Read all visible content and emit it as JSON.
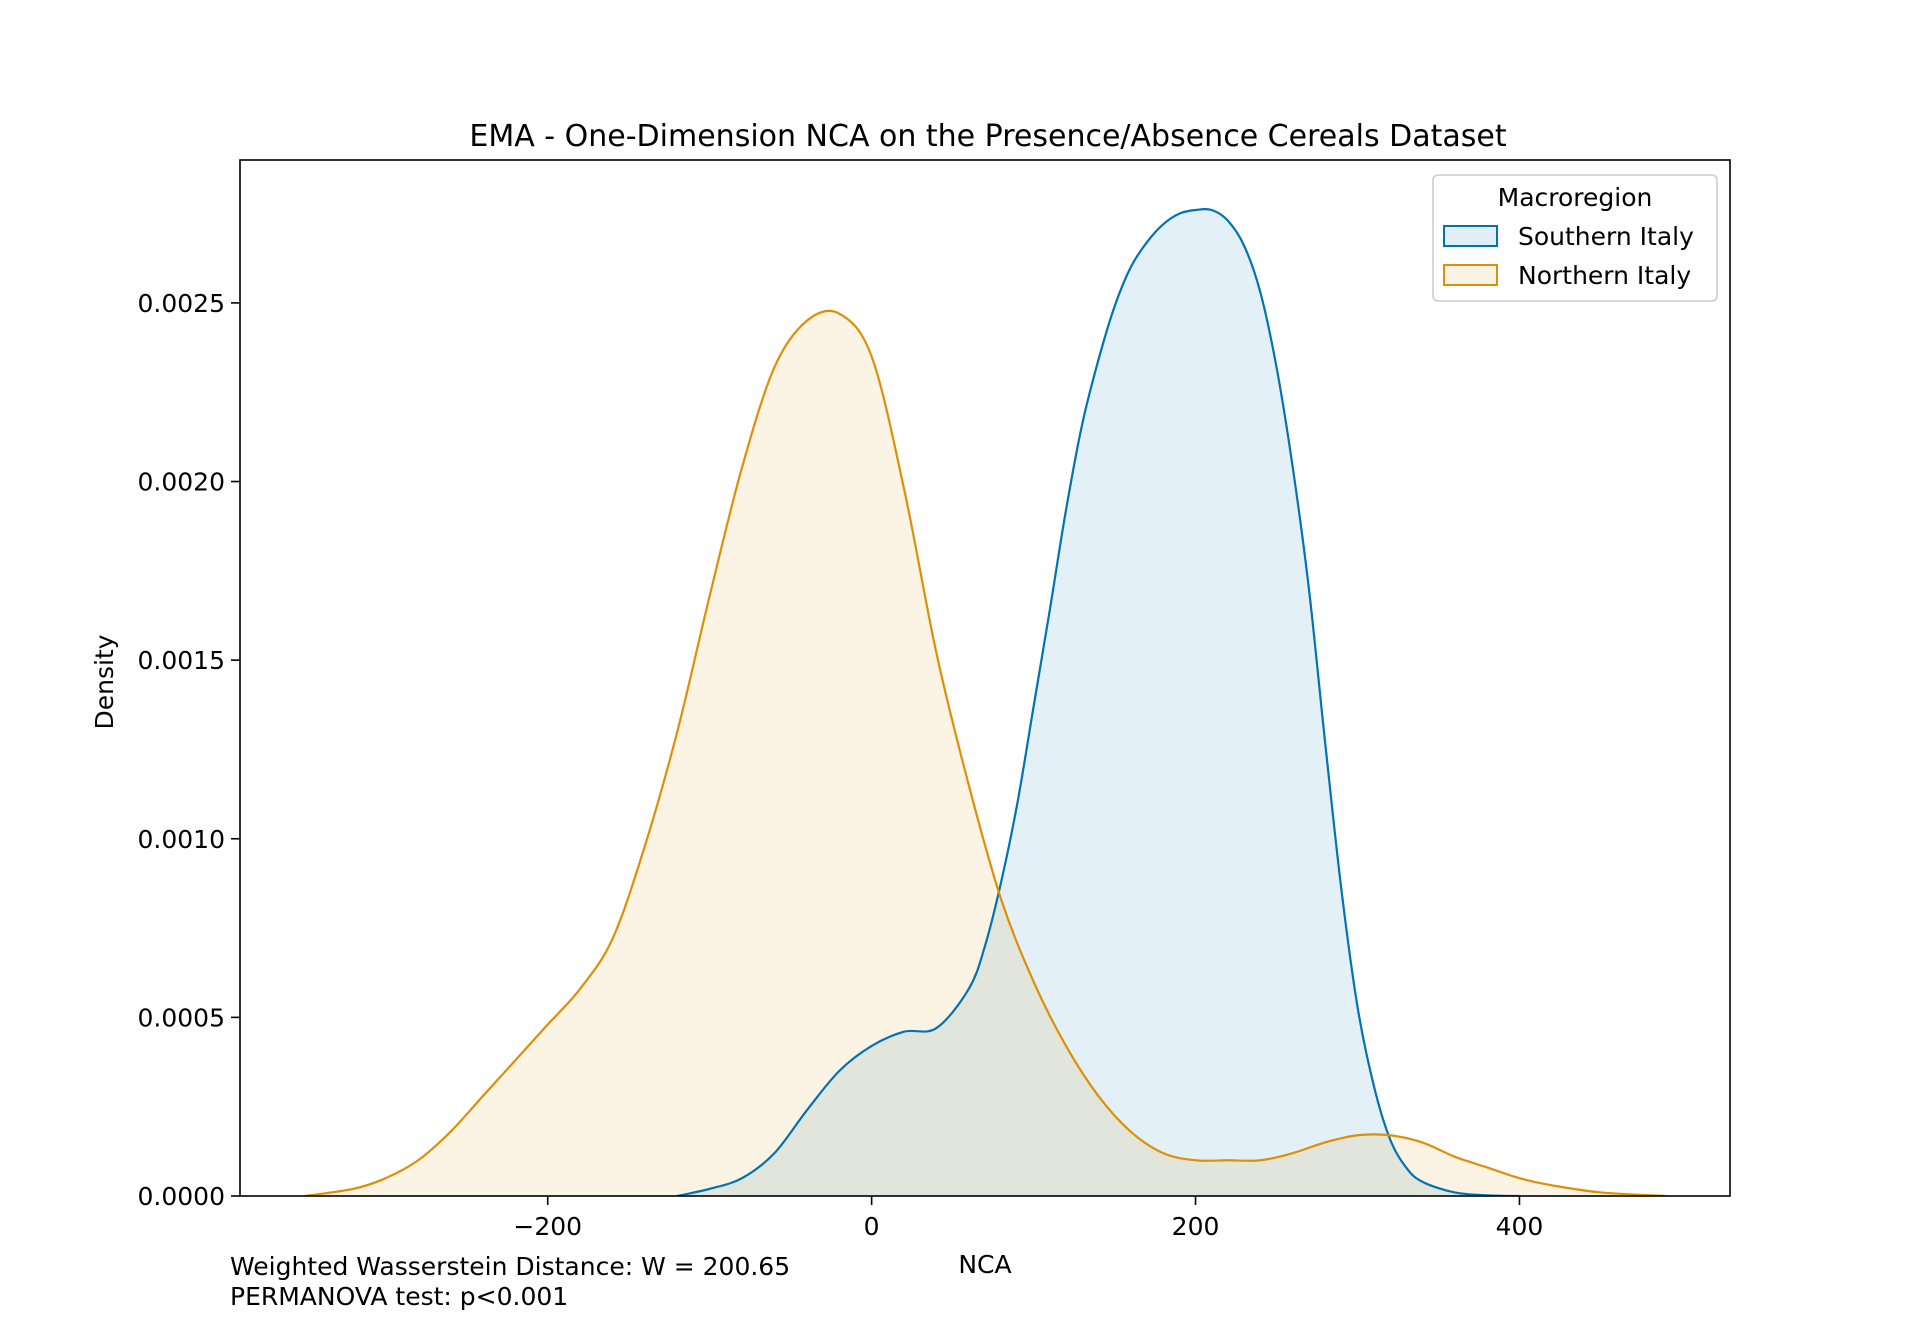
{
  "chart_data": {
    "type": "area",
    "title": "EMA - One-Dimension NCA on the Presence/Absence Cereals Dataset",
    "xlabel": "NCA",
    "ylabel": "Density",
    "xlim": [
      -390,
      530
    ],
    "ylim": [
      0,
      0.0029
    ],
    "xticks": [
      -200,
      0,
      200,
      400
    ],
    "xtick_labels": [
      "−200",
      "0",
      "200",
      "400"
    ],
    "yticks": [
      0,
      0.0005,
      0.001,
      0.0015,
      0.002,
      0.0025
    ],
    "ytick_labels": [
      "0.0000",
      "0.0005",
      "0.0010",
      "0.0015",
      "0.0020",
      "0.0025"
    ],
    "grid": false,
    "legend": {
      "title": "Macroregion",
      "position": "top-right"
    },
    "series": [
      {
        "name": "Southern Italy",
        "color": "#0173b2",
        "fill": "#e3eff6",
        "x": [
          -120,
          -100,
          -80,
          -60,
          -40,
          -20,
          0,
          20,
          40,
          60,
          70,
          80,
          90,
          100,
          110,
          120,
          130,
          140,
          150,
          160,
          170,
          180,
          190,
          200,
          210,
          220,
          230,
          240,
          250,
          260,
          270,
          280,
          290,
          300,
          310,
          320,
          330,
          340,
          360,
          380,
          400
        ],
        "y": [
          0,
          2e-05,
          5e-05,
          0.00012,
          0.00024,
          0.00035,
          0.00042,
          0.00046,
          0.00047,
          0.00058,
          0.0007,
          0.00088,
          0.0011,
          0.00137,
          0.00164,
          0.00192,
          0.00216,
          0.00234,
          0.00249,
          0.0026,
          0.00267,
          0.00272,
          0.00275,
          0.00276,
          0.00276,
          0.00273,
          0.00266,
          0.00253,
          0.00232,
          0.00204,
          0.0017,
          0.00127,
          0.00086,
          0.00053,
          0.00031,
          0.00016,
          8e-05,
          4e-05,
          1e-05,
          2e-06,
          0
        ]
      },
      {
        "name": "Northern Italy",
        "color": "#de8f05",
        "fill": "#faf2e5",
        "x": [
          -350,
          -320,
          -300,
          -280,
          -260,
          -240,
          -220,
          -200,
          -180,
          -160,
          -140,
          -120,
          -100,
          -80,
          -60,
          -40,
          -20,
          0,
          20,
          40,
          60,
          80,
          100,
          120,
          140,
          160,
          180,
          200,
          220,
          240,
          260,
          280,
          300,
          320,
          340,
          360,
          380,
          400,
          420,
          450,
          490
        ],
        "y": [
          0,
          2e-05,
          5e-05,
          0.0001,
          0.00018,
          0.00028,
          0.00038,
          0.00048,
          0.00058,
          0.00072,
          0.00098,
          0.0013,
          0.00168,
          0.00204,
          0.00232,
          0.00245,
          0.00247,
          0.00235,
          0.00198,
          0.00152,
          0.00115,
          0.00083,
          0.0006,
          0.00042,
          0.00028,
          0.00018,
          0.00012,
          0.0001,
          0.0001,
          0.0001,
          0.00012,
          0.00015,
          0.00017,
          0.00017,
          0.00015,
          0.00011,
          8e-05,
          5e-05,
          3e-05,
          1e-05,
          0
        ]
      }
    ],
    "annotations": [
      "Weighted Wasserstein Distance: W = 200.65",
      "PERMANOVA test: p<0.001"
    ]
  }
}
